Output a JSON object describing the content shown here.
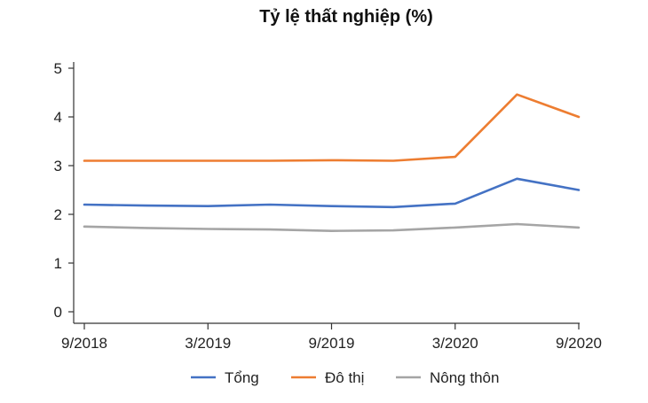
{
  "chart_data": {
    "type": "line",
    "title": "Tỷ lệ thất nghiệp (%)",
    "xlabel": "",
    "ylabel": "",
    "x": [
      "9/2018",
      "12/2018",
      "3/2019",
      "6/2019",
      "9/2019",
      "12/2019",
      "3/2020",
      "6/2020",
      "9/2020"
    ],
    "x_tick_labels": [
      "9/2018",
      "3/2019",
      "9/2019",
      "3/2020",
      "9/2020"
    ],
    "y_ticks": [
      0,
      1,
      2,
      3,
      4,
      5
    ],
    "ylim": [
      0,
      5
    ],
    "grid": false,
    "legend_position": "bottom",
    "series": [
      {
        "name": "Tổng",
        "color": "#4472c4",
        "values": [
          2.2,
          2.18,
          2.17,
          2.2,
          2.17,
          2.15,
          2.22,
          2.73,
          2.5
        ]
      },
      {
        "name": "Đô thị",
        "color": "#ed7d31",
        "values": [
          3.1,
          3.1,
          3.1,
          3.1,
          3.11,
          3.1,
          3.18,
          4.46,
          4.0
        ]
      },
      {
        "name": "Nông thôn",
        "color": "#a5a5a5",
        "values": [
          1.75,
          1.72,
          1.7,
          1.69,
          1.66,
          1.67,
          1.73,
          1.8,
          1.73
        ]
      }
    ]
  }
}
